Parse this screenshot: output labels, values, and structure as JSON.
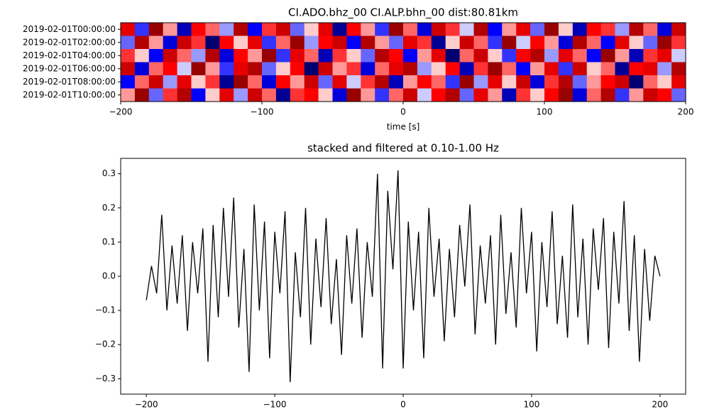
{
  "chart_data": [
    {
      "type": "heatmap",
      "title": "CI.ADO.bhz_00 CI.ALP.bhn_00  dist:80.81km",
      "xlabel": "time [s]",
      "y_categories": [
        "2019-02-01T00:00:00",
        "2019-02-01T02:00:00",
        "2019-02-01T04:00:00",
        "2019-02-01T06:00:00",
        "2019-02-01T08:00:00",
        "2019-02-01T10:00:00"
      ],
      "x": [
        -195,
        -185,
        -175,
        -165,
        -155,
        -145,
        -135,
        -125,
        -115,
        -105,
        -95,
        -85,
        -75,
        -65,
        -55,
        -45,
        -35,
        -25,
        -15,
        -5,
        5,
        15,
        25,
        35,
        45,
        55,
        65,
        75,
        85,
        95,
        105,
        115,
        125,
        135,
        145,
        155,
        165,
        175,
        185,
        195
      ],
      "xlim": [
        -200,
        200
      ],
      "xticks": [
        {
          "value": -200,
          "label": "−200"
        },
        {
          "value": -100,
          "label": "−100"
        },
        0,
        100,
        200
      ],
      "zlim": [
        -1,
        1
      ],
      "values": [
        [
          0.6,
          -0.4,
          0.9,
          0.2,
          -0.7,
          0.5,
          0.3,
          -0.2,
          0.8,
          -0.5,
          0.4,
          0.7,
          -0.3,
          0.1,
          0.6,
          -0.8,
          0.5,
          0.2,
          -0.4,
          0.9,
          0.3,
          -0.6,
          0.7,
          0.4,
          -0.1,
          0.8,
          -0.5,
          0.2,
          0.6,
          -0.3,
          0.9,
          0.1,
          -0.7,
          0.5,
          0.4,
          -0.2,
          0.8,
          0.3,
          -0.6,
          0.7
        ],
        [
          -0.3,
          0.8,
          0.2,
          -0.6,
          0.7,
          0.4,
          -0.9,
          0.5,
          0.1,
          0.6,
          -0.4,
          0.3,
          0.9,
          -0.2,
          0.5,
          0.7,
          -0.5,
          0.8,
          0.2,
          -0.3,
          0.6,
          0.4,
          -0.8,
          0.1,
          0.7,
          0.3,
          -0.4,
          0.9,
          -0.1,
          0.5,
          0.2,
          -0.6,
          0.8,
          0.3,
          -0.5,
          0.6,
          0.1,
          -0.3,
          0.9,
          0.4
        ],
        [
          0.4,
          0.1,
          -0.5,
          0.7,
          0.3,
          -0.2,
          0.8,
          -0.6,
          0.5,
          0.2,
          0.9,
          -0.4,
          0.6,
          0.3,
          -0.7,
          0.4,
          0.1,
          -0.3,
          0.8,
          0.5,
          -0.5,
          0.2,
          0.6,
          -0.9,
          0.3,
          0.7,
          0.1,
          -0.4,
          0.5,
          0.8,
          -0.2,
          0.6,
          0.3,
          -0.5,
          0.9,
          0.2,
          -0.7,
          0.4,
          0.6,
          -0.1
        ],
        [
          0.7,
          -0.6,
          0.3,
          0.5,
          -0.1,
          0.9,
          0.2,
          -0.4,
          0.6,
          0.8,
          -0.3,
          0.1,
          0.5,
          -0.9,
          0.7,
          0.2,
          0.4,
          -0.6,
          0.3,
          0.6,
          0.8,
          -0.2,
          0.1,
          0.5,
          -0.7,
          0.4,
          0.9,
          0.3,
          -0.5,
          0.2,
          0.6,
          -0.4,
          0.7,
          0.1,
          0.3,
          -0.8,
          0.5,
          0.6,
          -0.2,
          0.8
        ],
        [
          -0.5,
          0.3,
          0.7,
          -0.2,
          0.6,
          0.1,
          0.4,
          -0.8,
          0.9,
          0.3,
          -0.6,
          0.5,
          0.2,
          0.7,
          -0.3,
          0.6,
          -0.1,
          0.4,
          0.8,
          -0.7,
          0.2,
          0.5,
          0.3,
          -0.4,
          0.9,
          -0.2,
          0.6,
          0.1,
          0.7,
          -0.6,
          0.4,
          0.8,
          -0.3,
          0.2,
          0.5,
          0.7,
          -0.9,
          0.3,
          0.1,
          0.6
        ],
        [
          0.2,
          0.9,
          -0.3,
          0.4,
          0.8,
          -0.5,
          0.1,
          0.6,
          -0.2,
          0.7,
          0.3,
          -0.8,
          0.4,
          0.5,
          0.1,
          -0.6,
          0.9,
          0.2,
          -0.4,
          0.3,
          0.7,
          -0.1,
          0.5,
          0.8,
          -0.3,
          0.6,
          0.2,
          -0.7,
          0.4,
          0.1,
          0.5,
          0.9,
          -0.6,
          0.3,
          0.8,
          -0.4,
          0.2,
          0.7,
          0.5,
          -0.3
        ]
      ]
    },
    {
      "type": "line",
      "title": "stacked and filtered at 0.10-1.00 Hz",
      "color": "#000000",
      "x": [
        -200,
        -196,
        -192,
        -188,
        -184,
        -180,
        -176,
        -172,
        -168,
        -164,
        -160,
        -156,
        -152,
        -148,
        -144,
        -140,
        -136,
        -132,
        -128,
        -124,
        -120,
        -116,
        -112,
        -108,
        -104,
        -100,
        -96,
        -92,
        -88,
        -84,
        -80,
        -76,
        -72,
        -68,
        -64,
        -60,
        -56,
        -52,
        -48,
        -44,
        -40,
        -36,
        -32,
        -28,
        -24,
        -20,
        -16,
        -12,
        -8,
        -4,
        0,
        4,
        8,
        12,
        16,
        20,
        24,
        28,
        32,
        36,
        40,
        44,
        48,
        52,
        56,
        60,
        64,
        68,
        72,
        76,
        80,
        84,
        88,
        92,
        96,
        100,
        104,
        108,
        112,
        116,
        120,
        124,
        128,
        132,
        136,
        140,
        144,
        148,
        152,
        156,
        160,
        164,
        168,
        172,
        176,
        180,
        184,
        188,
        192,
        196,
        200
      ],
      "values": [
        -0.07,
        0.03,
        -0.05,
        0.18,
        -0.1,
        0.09,
        -0.08,
        0.12,
        -0.16,
        0.1,
        -0.05,
        0.14,
        -0.25,
        0.15,
        -0.12,
        0.2,
        -0.06,
        0.23,
        -0.15,
        0.08,
        -0.28,
        0.21,
        -0.1,
        0.16,
        -0.24,
        0.13,
        -0.05,
        0.19,
        -0.31,
        0.07,
        -0.12,
        0.2,
        -0.2,
        0.11,
        -0.09,
        0.17,
        -0.14,
        0.05,
        -0.23,
        0.12,
        -0.08,
        0.14,
        -0.18,
        0.1,
        -0.06,
        0.3,
        -0.27,
        0.25,
        0.02,
        0.31,
        -0.27,
        0.16,
        -0.1,
        0.13,
        -0.24,
        0.2,
        -0.06,
        0.11,
        -0.19,
        0.08,
        -0.12,
        0.15,
        -0.03,
        0.21,
        -0.17,
        0.09,
        -0.08,
        0.12,
        -0.2,
        0.18,
        -0.11,
        0.07,
        -0.15,
        0.2,
        -0.05,
        0.13,
        -0.22,
        0.1,
        -0.09,
        0.19,
        -0.14,
        0.06,
        -0.18,
        0.21,
        -0.12,
        0.11,
        -0.2,
        0.14,
        -0.04,
        0.17,
        -0.21,
        0.13,
        -0.08,
        0.22,
        -0.16,
        0.12,
        -0.25,
        0.08,
        -0.13,
        0.06,
        0.0
      ],
      "xlim": [
        -220,
        220
      ],
      "xticks": [
        {
          "value": -200,
          "label": "−200"
        },
        {
          "value": -100,
          "label": "−100"
        },
        0,
        100,
        200
      ],
      "ylim": [
        -0.345,
        0.345
      ],
      "yticks": [
        {
          "value": -0.3,
          "label": "−0.3"
        },
        {
          "value": -0.2,
          "label": "−0.2"
        },
        {
          "value": -0.1,
          "label": "−0.1"
        },
        {
          "value": 0.0,
          "label": "0.0"
        },
        0.1,
        0.2,
        0.3
      ]
    }
  ]
}
